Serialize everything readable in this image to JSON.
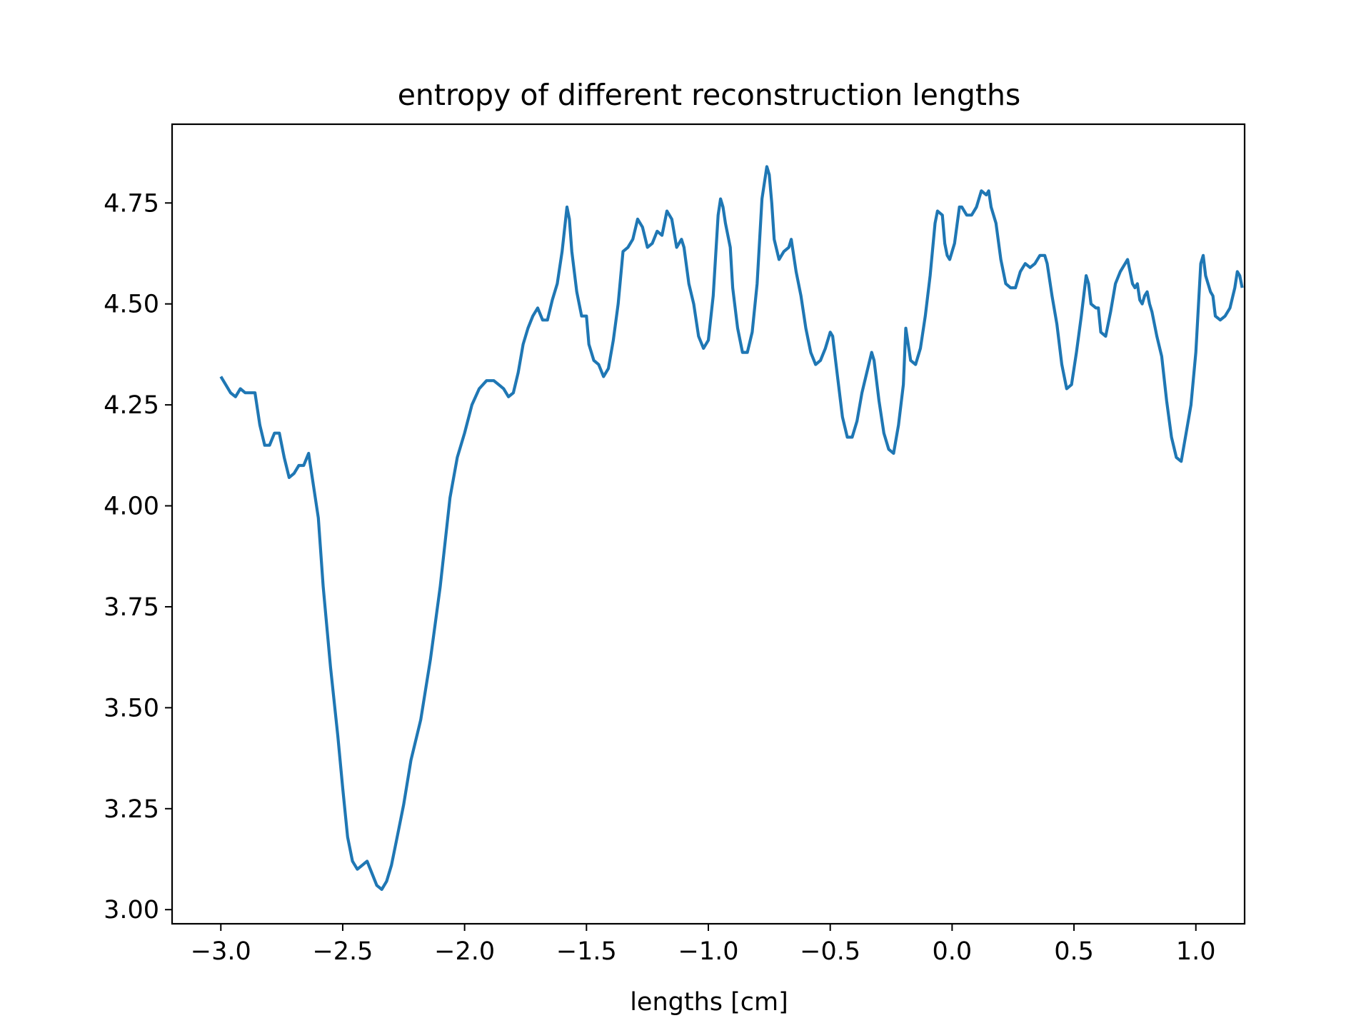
{
  "chart_data": {
    "type": "line",
    "title": "entropy of different reconstruction lengths",
    "xlabel": "lengths [cm]",
    "ylabel": "",
    "xlim": [
      -3.2,
      1.2
    ],
    "ylim": [
      2.965,
      4.945
    ],
    "xticks": [
      -3.0,
      -2.5,
      -2.0,
      -1.5,
      -1.0,
      -0.5,
      0.0,
      0.5,
      1.0
    ],
    "xtick_labels": [
      "−3.0",
      "−2.5",
      "−2.0",
      "−1.5",
      "−1.0",
      "−0.5",
      "0.0",
      "0.5",
      "1.0"
    ],
    "yticks": [
      3.0,
      3.25,
      3.5,
      3.75,
      4.0,
      4.25,
      4.5,
      4.75
    ],
    "ytick_labels": [
      "3.00",
      "3.25",
      "3.50",
      "3.75",
      "4.00",
      "4.25",
      "4.50",
      "4.75"
    ],
    "grid": false,
    "line_color": "#1f77b4",
    "series": [
      {
        "points": [
          [
            -3.0,
            4.32
          ],
          [
            -2.98,
            4.3
          ],
          [
            -2.96,
            4.28
          ],
          [
            -2.94,
            4.27
          ],
          [
            -2.92,
            4.29
          ],
          [
            -2.9,
            4.28
          ],
          [
            -2.88,
            4.28
          ],
          [
            -2.86,
            4.28
          ],
          [
            -2.84,
            4.2
          ],
          [
            -2.82,
            4.15
          ],
          [
            -2.8,
            4.15
          ],
          [
            -2.78,
            4.18
          ],
          [
            -2.76,
            4.18
          ],
          [
            -2.74,
            4.12
          ],
          [
            -2.72,
            4.07
          ],
          [
            -2.7,
            4.08
          ],
          [
            -2.68,
            4.1
          ],
          [
            -2.66,
            4.1
          ],
          [
            -2.64,
            4.13
          ],
          [
            -2.62,
            4.05
          ],
          [
            -2.6,
            3.97
          ],
          [
            -2.58,
            3.8
          ],
          [
            -2.55,
            3.6
          ],
          [
            -2.52,
            3.43
          ],
          [
            -2.5,
            3.3
          ],
          [
            -2.48,
            3.18
          ],
          [
            -2.46,
            3.12
          ],
          [
            -2.44,
            3.1
          ],
          [
            -2.42,
            3.11
          ],
          [
            -2.4,
            3.12
          ],
          [
            -2.38,
            3.09
          ],
          [
            -2.36,
            3.06
          ],
          [
            -2.34,
            3.05
          ],
          [
            -2.32,
            3.07
          ],
          [
            -2.3,
            3.11
          ],
          [
            -2.28,
            3.17
          ],
          [
            -2.25,
            3.26
          ],
          [
            -2.22,
            3.37
          ],
          [
            -2.18,
            3.47
          ],
          [
            -2.14,
            3.62
          ],
          [
            -2.1,
            3.8
          ],
          [
            -2.06,
            4.02
          ],
          [
            -2.03,
            4.12
          ],
          [
            -2.0,
            4.18
          ],
          [
            -1.97,
            4.25
          ],
          [
            -1.94,
            4.29
          ],
          [
            -1.91,
            4.31
          ],
          [
            -1.88,
            4.31
          ],
          [
            -1.86,
            4.3
          ],
          [
            -1.84,
            4.29
          ],
          [
            -1.82,
            4.27
          ],
          [
            -1.8,
            4.28
          ],
          [
            -1.78,
            4.33
          ],
          [
            -1.76,
            4.4
          ],
          [
            -1.74,
            4.44
          ],
          [
            -1.72,
            4.47
          ],
          [
            -1.7,
            4.49
          ],
          [
            -1.68,
            4.46
          ],
          [
            -1.66,
            4.46
          ],
          [
            -1.64,
            4.51
          ],
          [
            -1.62,
            4.55
          ],
          [
            -1.6,
            4.63
          ],
          [
            -1.58,
            4.74
          ],
          [
            -1.57,
            4.71
          ],
          [
            -1.56,
            4.63
          ],
          [
            -1.54,
            4.53
          ],
          [
            -1.52,
            4.47
          ],
          [
            -1.5,
            4.47
          ],
          [
            -1.49,
            4.4
          ],
          [
            -1.47,
            4.36
          ],
          [
            -1.45,
            4.35
          ],
          [
            -1.43,
            4.32
          ],
          [
            -1.41,
            4.34
          ],
          [
            -1.39,
            4.41
          ],
          [
            -1.37,
            4.5
          ],
          [
            -1.35,
            4.63
          ],
          [
            -1.33,
            4.64
          ],
          [
            -1.31,
            4.66
          ],
          [
            -1.29,
            4.71
          ],
          [
            -1.27,
            4.69
          ],
          [
            -1.25,
            4.64
          ],
          [
            -1.23,
            4.65
          ],
          [
            -1.21,
            4.68
          ],
          [
            -1.19,
            4.67
          ],
          [
            -1.17,
            4.73
          ],
          [
            -1.15,
            4.71
          ],
          [
            -1.13,
            4.64
          ],
          [
            -1.11,
            4.66
          ],
          [
            -1.1,
            4.64
          ],
          [
            -1.08,
            4.55
          ],
          [
            -1.06,
            4.5
          ],
          [
            -1.04,
            4.42
          ],
          [
            -1.02,
            4.39
          ],
          [
            -1.0,
            4.41
          ],
          [
            -0.98,
            4.52
          ],
          [
            -0.96,
            4.72
          ],
          [
            -0.95,
            4.76
          ],
          [
            -0.94,
            4.74
          ],
          [
            -0.93,
            4.7
          ],
          [
            -0.91,
            4.64
          ],
          [
            -0.9,
            4.54
          ],
          [
            -0.88,
            4.44
          ],
          [
            -0.86,
            4.38
          ],
          [
            -0.84,
            4.38
          ],
          [
            -0.82,
            4.43
          ],
          [
            -0.8,
            4.55
          ],
          [
            -0.78,
            4.76
          ],
          [
            -0.77,
            4.8
          ],
          [
            -0.76,
            4.84
          ],
          [
            -0.75,
            4.82
          ],
          [
            -0.74,
            4.75
          ],
          [
            -0.73,
            4.66
          ],
          [
            -0.71,
            4.61
          ],
          [
            -0.69,
            4.63
          ],
          [
            -0.67,
            4.64
          ],
          [
            -0.66,
            4.66
          ],
          [
            -0.64,
            4.58
          ],
          [
            -0.62,
            4.52
          ],
          [
            -0.6,
            4.44
          ],
          [
            -0.58,
            4.38
          ],
          [
            -0.56,
            4.35
          ],
          [
            -0.54,
            4.36
          ],
          [
            -0.52,
            4.39
          ],
          [
            -0.5,
            4.43
          ],
          [
            -0.49,
            4.42
          ],
          [
            -0.47,
            4.32
          ],
          [
            -0.45,
            4.22
          ],
          [
            -0.43,
            4.17
          ],
          [
            -0.41,
            4.17
          ],
          [
            -0.39,
            4.21
          ],
          [
            -0.37,
            4.28
          ],
          [
            -0.35,
            4.33
          ],
          [
            -0.33,
            4.38
          ],
          [
            -0.32,
            4.36
          ],
          [
            -0.3,
            4.26
          ],
          [
            -0.28,
            4.18
          ],
          [
            -0.26,
            4.14
          ],
          [
            -0.24,
            4.13
          ],
          [
            -0.22,
            4.2
          ],
          [
            -0.2,
            4.3
          ],
          [
            -0.19,
            4.44
          ],
          [
            -0.18,
            4.4
          ],
          [
            -0.17,
            4.36
          ],
          [
            -0.15,
            4.35
          ],
          [
            -0.13,
            4.39
          ],
          [
            -0.11,
            4.47
          ],
          [
            -0.09,
            4.57
          ],
          [
            -0.07,
            4.7
          ],
          [
            -0.06,
            4.73
          ],
          [
            -0.04,
            4.72
          ],
          [
            -0.03,
            4.65
          ],
          [
            -0.02,
            4.62
          ],
          [
            -0.01,
            4.61
          ],
          [
            0.01,
            4.65
          ],
          [
            0.03,
            4.74
          ],
          [
            0.04,
            4.74
          ],
          [
            0.06,
            4.72
          ],
          [
            0.08,
            4.72
          ],
          [
            0.1,
            4.74
          ],
          [
            0.12,
            4.78
          ],
          [
            0.14,
            4.77
          ],
          [
            0.15,
            4.78
          ],
          [
            0.16,
            4.74
          ],
          [
            0.18,
            4.7
          ],
          [
            0.2,
            4.61
          ],
          [
            0.22,
            4.55
          ],
          [
            0.24,
            4.54
          ],
          [
            0.26,
            4.54
          ],
          [
            0.28,
            4.58
          ],
          [
            0.3,
            4.6
          ],
          [
            0.32,
            4.59
          ],
          [
            0.34,
            4.6
          ],
          [
            0.36,
            4.62
          ],
          [
            0.38,
            4.62
          ],
          [
            0.39,
            4.6
          ],
          [
            0.41,
            4.52
          ],
          [
            0.43,
            4.45
          ],
          [
            0.45,
            4.35
          ],
          [
            0.47,
            4.29
          ],
          [
            0.49,
            4.3
          ],
          [
            0.51,
            4.38
          ],
          [
            0.53,
            4.47
          ],
          [
            0.55,
            4.57
          ],
          [
            0.56,
            4.55
          ],
          [
            0.57,
            4.5
          ],
          [
            0.59,
            4.49
          ],
          [
            0.6,
            4.49
          ],
          [
            0.61,
            4.43
          ],
          [
            0.63,
            4.42
          ],
          [
            0.65,
            4.48
          ],
          [
            0.67,
            4.55
          ],
          [
            0.69,
            4.58
          ],
          [
            0.71,
            4.6
          ],
          [
            0.72,
            4.61
          ],
          [
            0.73,
            4.58
          ],
          [
            0.74,
            4.55
          ],
          [
            0.75,
            4.54
          ],
          [
            0.76,
            4.55
          ],
          [
            0.77,
            4.51
          ],
          [
            0.78,
            4.5
          ],
          [
            0.79,
            4.52
          ],
          [
            0.8,
            4.53
          ],
          [
            0.81,
            4.5
          ],
          [
            0.82,
            4.48
          ],
          [
            0.84,
            4.42
          ],
          [
            0.86,
            4.37
          ],
          [
            0.88,
            4.26
          ],
          [
            0.9,
            4.17
          ],
          [
            0.92,
            4.12
          ],
          [
            0.94,
            4.11
          ],
          [
            0.96,
            4.18
          ],
          [
            0.98,
            4.25
          ],
          [
            1.0,
            4.38
          ],
          [
            1.02,
            4.6
          ],
          [
            1.03,
            4.62
          ],
          [
            1.04,
            4.57
          ],
          [
            1.06,
            4.53
          ],
          [
            1.07,
            4.52
          ],
          [
            1.08,
            4.47
          ],
          [
            1.1,
            4.46
          ],
          [
            1.12,
            4.47
          ],
          [
            1.14,
            4.49
          ],
          [
            1.16,
            4.54
          ],
          [
            1.17,
            4.58
          ],
          [
            1.18,
            4.57
          ],
          [
            1.19,
            4.54
          ]
        ]
      }
    ]
  }
}
